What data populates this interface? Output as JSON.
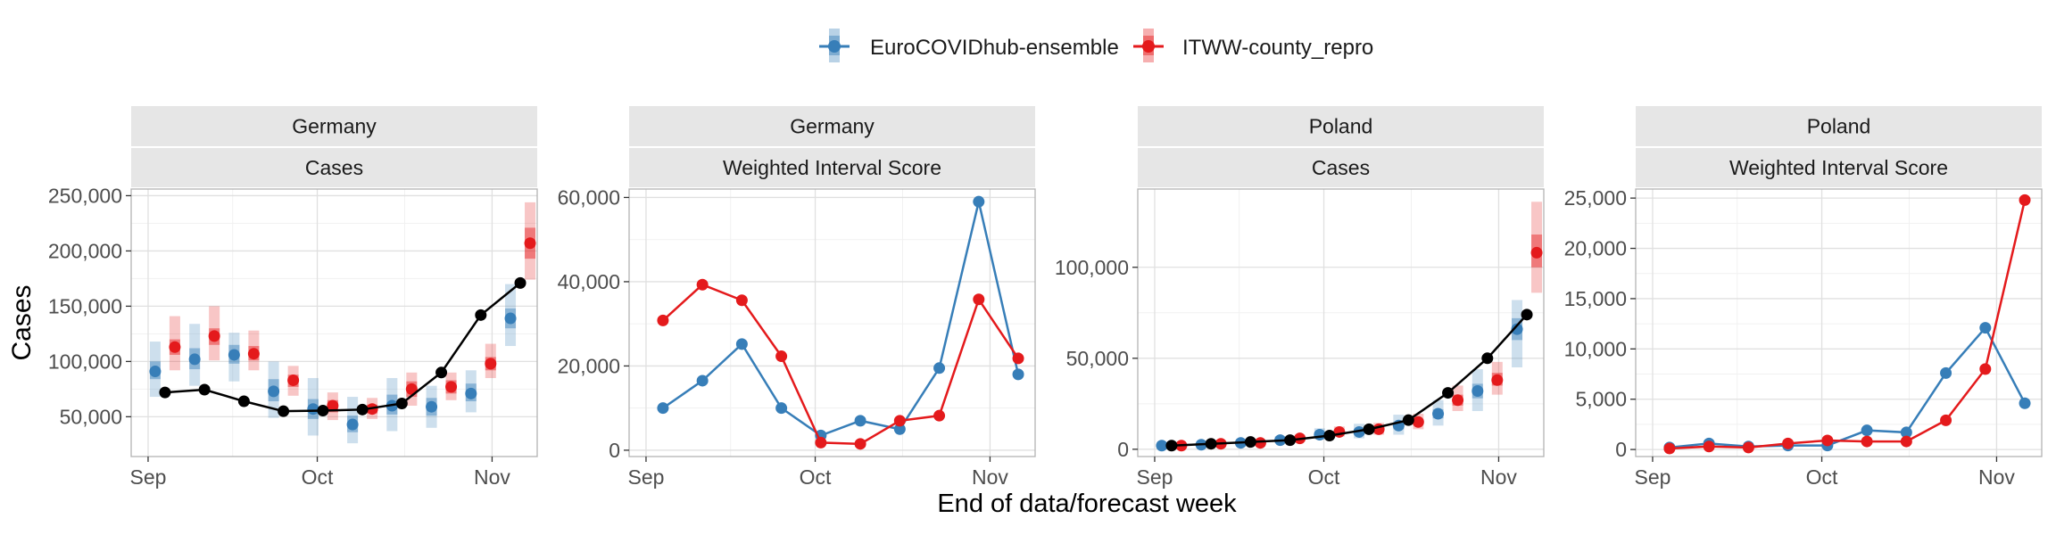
{
  "legend": {
    "position": "top-center",
    "entries": [
      {
        "label": "EuroCOVIDhub-ensemble",
        "color": "#377EB8"
      },
      {
        "label": "ITWW-county_repro",
        "color": "#E41A1C"
      }
    ]
  },
  "axis_labels": {
    "y": "Cases",
    "x": "End of data/forecast week"
  },
  "colors": {
    "observed": "#000000",
    "strip_background": "#E6E6E6",
    "panel_border": "#B3B3B3",
    "grid_major": "#E0E0E0",
    "grid_minor": "#F1F1F1"
  },
  "chart_data": [
    {
      "type": "line",
      "facet": [
        "Germany",
        "Cases"
      ],
      "xlabel": "End of data/forecast week",
      "ylabel": "Cases",
      "x_ticks": [
        "Sep",
        "Oct",
        "Nov"
      ],
      "y_ticks": [
        "50,000",
        "100,000",
        "150,000",
        "200,000",
        "250,000"
      ],
      "y_tick_values": [
        50000,
        100000,
        150000,
        200000,
        250000
      ],
      "x_tick_values": [
        "2021-09-01",
        "2021-10-01",
        "2021-11-01"
      ],
      "xlim": [
        "2021-08-29",
        "2021-11-09"
      ],
      "ylim": [
        14000,
        256000
      ],
      "observed": {
        "x": [
          "2021-09-04",
          "2021-09-11",
          "2021-09-18",
          "2021-09-25",
          "2021-10-02",
          "2021-10-09",
          "2021-10-16",
          "2021-10-23",
          "2021-10-30",
          "2021-11-06"
        ],
        "y": [
          72000,
          74500,
          64000,
          55000,
          55500,
          56500,
          62000,
          90000,
          142000,
          171000
        ]
      },
      "series": [
        {
          "name": "EuroCOVIDhub-ensemble",
          "x": [
            "2021-09-04",
            "2021-09-11",
            "2021-09-18",
            "2021-09-25",
            "2021-10-02",
            "2021-10-09",
            "2021-10-16",
            "2021-10-23",
            "2021-10-30",
            "2021-11-06"
          ],
          "median": [
            91000,
            102000,
            106000,
            73000,
            57000,
            43000,
            60000,
            59000,
            71000,
            139000
          ],
          "lower50": [
            84000,
            93000,
            98000,
            64000,
            48000,
            36000,
            52000,
            51000,
            64000,
            130000
          ],
          "upper50": [
            100000,
            112000,
            115000,
            84000,
            66000,
            51000,
            70000,
            67000,
            80000,
            148000
          ],
          "lower90": [
            68000,
            78000,
            82000,
            49000,
            33000,
            26000,
            37000,
            40000,
            54000,
            114000
          ],
          "upper90": [
            118000,
            134000,
            126000,
            100000,
            85000,
            68000,
            85000,
            78000,
            92000,
            170000
          ]
        },
        {
          "name": "ITWW-county_repro",
          "x": [
            "2021-09-04",
            "2021-09-11",
            "2021-09-18",
            "2021-09-25",
            "2021-10-02",
            "2021-10-09",
            "2021-10-16",
            "2021-10-23",
            "2021-10-30",
            "2021-11-06"
          ],
          "median": [
            113000,
            123000,
            107000,
            83000,
            60000,
            57000,
            75000,
            77000,
            98000,
            207000
          ],
          "lower50": [
            106000,
            115000,
            101000,
            77000,
            54000,
            53000,
            68000,
            71000,
            92000,
            193000
          ],
          "upper50": [
            120000,
            130000,
            114000,
            88000,
            65000,
            61000,
            82000,
            83000,
            104000,
            221000
          ],
          "lower90": [
            92000,
            101000,
            92000,
            69000,
            47000,
            48000,
            60000,
            65000,
            85000,
            174000
          ],
          "upper90": [
            141000,
            150000,
            128000,
            96000,
            72000,
            67000,
            90000,
            90000,
            116000,
            244000
          ]
        }
      ]
    },
    {
      "type": "line",
      "facet": [
        "Germany",
        "Weighted Interval Score"
      ],
      "x_ticks": [
        "Sep",
        "Oct",
        "Nov"
      ],
      "y_ticks": [
        "0",
        "20,000",
        "40,000",
        "60,000"
      ],
      "y_tick_values": [
        0,
        20000,
        40000,
        60000
      ],
      "x_tick_values": [
        "2021-09-01",
        "2021-10-01",
        "2021-11-01"
      ],
      "xlim": [
        "2021-08-29",
        "2021-11-09"
      ],
      "ylim": [
        -1500,
        62000
      ],
      "series": [
        {
          "name": "EuroCOVIDhub-ensemble",
          "x": [
            "2021-09-04",
            "2021-09-11",
            "2021-09-18",
            "2021-09-25",
            "2021-10-02",
            "2021-10-09",
            "2021-10-16",
            "2021-10-23",
            "2021-10-30",
            "2021-11-06"
          ],
          "y": [
            10000,
            16500,
            25200,
            10000,
            3500,
            7000,
            5000,
            19500,
            59000,
            18000
          ]
        },
        {
          "name": "ITWW-county_repro",
          "x": [
            "2021-09-04",
            "2021-09-11",
            "2021-09-18",
            "2021-09-25",
            "2021-10-02",
            "2021-10-09",
            "2021-10-16",
            "2021-10-23",
            "2021-10-30",
            "2021-11-06"
          ],
          "y": [
            30800,
            39300,
            35600,
            22300,
            1800,
            1500,
            7000,
            8200,
            35800,
            21800
          ]
        }
      ]
    },
    {
      "type": "line",
      "facet": [
        "Poland",
        "Cases"
      ],
      "x_ticks": [
        "Sep",
        "Oct",
        "Nov"
      ],
      "y_ticks": [
        "0",
        "50,000",
        "100,000"
      ],
      "y_tick_values": [
        0,
        50000,
        100000
      ],
      "x_tick_values": [
        "2021-09-01",
        "2021-10-01",
        "2021-11-01"
      ],
      "xlim": [
        "2021-08-29",
        "2021-11-09"
      ],
      "ylim": [
        -4000,
        143000
      ],
      "observed": {
        "x": [
          "2021-09-04",
          "2021-09-11",
          "2021-09-18",
          "2021-09-25",
          "2021-10-02",
          "2021-10-09",
          "2021-10-16",
          "2021-10-23",
          "2021-10-30",
          "2021-11-06"
        ],
        "y": [
          2000,
          3000,
          4000,
          5000,
          7500,
          11000,
          16000,
          31000,
          50000,
          74000
        ]
      },
      "series": [
        {
          "name": "EuroCOVIDhub-ensemble",
          "x": [
            "2021-09-04",
            "2021-09-11",
            "2021-09-18",
            "2021-09-25",
            "2021-10-02",
            "2021-10-09",
            "2021-10-16",
            "2021-10-23",
            "2021-10-30",
            "2021-11-06"
          ],
          "median": [
            2000,
            2500,
            3500,
            5000,
            8000,
            9500,
            13000,
            19500,
            32000,
            66000
          ],
          "lower50": [
            1700,
            2200,
            3000,
            4300,
            7000,
            8000,
            11000,
            17000,
            28000,
            60000
          ],
          "upper50": [
            2400,
            2900,
            4000,
            5700,
            9000,
            11000,
            15000,
            22000,
            36000,
            72000
          ],
          "lower90": [
            1300,
            1700,
            2300,
            3300,
            5500,
            6000,
            8000,
            13000,
            21000,
            45000
          ],
          "upper90": [
            3000,
            3800,
            5000,
            7200,
            11500,
            14000,
            19000,
            27000,
            44000,
            82000
          ]
        },
        {
          "name": "ITWW-county_repro",
          "x": [
            "2021-09-04",
            "2021-09-11",
            "2021-09-18",
            "2021-09-25",
            "2021-10-02",
            "2021-10-09",
            "2021-10-16",
            "2021-10-23",
            "2021-10-30",
            "2021-11-06"
          ],
          "median": [
            2000,
            3000,
            3500,
            6000,
            9500,
            11000,
            15000,
            27000,
            38000,
            108000
          ],
          "lower50": [
            1700,
            2600,
            3100,
            5300,
            8500,
            9800,
            13500,
            24000,
            35000,
            100000
          ],
          "upper50": [
            2300,
            3400,
            4000,
            6700,
            10500,
            12200,
            16500,
            30000,
            42000,
            118000
          ],
          "lower90": [
            1300,
            2000,
            2500,
            4300,
            7000,
            8000,
            11000,
            21000,
            30000,
            86000
          ],
          "upper90": [
            2800,
            4200,
            5000,
            8000,
            12500,
            14500,
            19500,
            35000,
            48000,
            136000
          ]
        }
      ]
    },
    {
      "type": "line",
      "facet": [
        "Poland",
        "Weighted Interval Score"
      ],
      "x_ticks": [
        "Sep",
        "Oct",
        "Nov"
      ],
      "y_ticks": [
        "0",
        "5,000",
        "10,000",
        "15,000",
        "20,000",
        "25,000"
      ],
      "y_tick_values": [
        0,
        5000,
        10000,
        15000,
        20000,
        25000
      ],
      "x_tick_values": [
        "2021-09-01",
        "2021-10-01",
        "2021-11-01"
      ],
      "xlim": [
        "2021-08-29",
        "2021-11-09"
      ],
      "ylim": [
        -700,
        25900
      ],
      "series": [
        {
          "name": "EuroCOVIDhub-ensemble",
          "x": [
            "2021-09-04",
            "2021-09-11",
            "2021-09-18",
            "2021-09-25",
            "2021-10-02",
            "2021-10-09",
            "2021-10-16",
            "2021-10-23",
            "2021-10-30",
            "2021-11-06"
          ],
          "y": [
            200,
            600,
            300,
            400,
            400,
            1900,
            1700,
            7600,
            12100,
            4600
          ]
        },
        {
          "name": "ITWW-county_repro",
          "x": [
            "2021-09-04",
            "2021-09-11",
            "2021-09-18",
            "2021-09-25",
            "2021-10-02",
            "2021-10-09",
            "2021-10-16",
            "2021-10-23",
            "2021-10-30",
            "2021-11-06"
          ],
          "y": [
            100,
            300,
            200,
            600,
            900,
            800,
            800,
            2900,
            8000,
            24800
          ]
        }
      ]
    }
  ]
}
